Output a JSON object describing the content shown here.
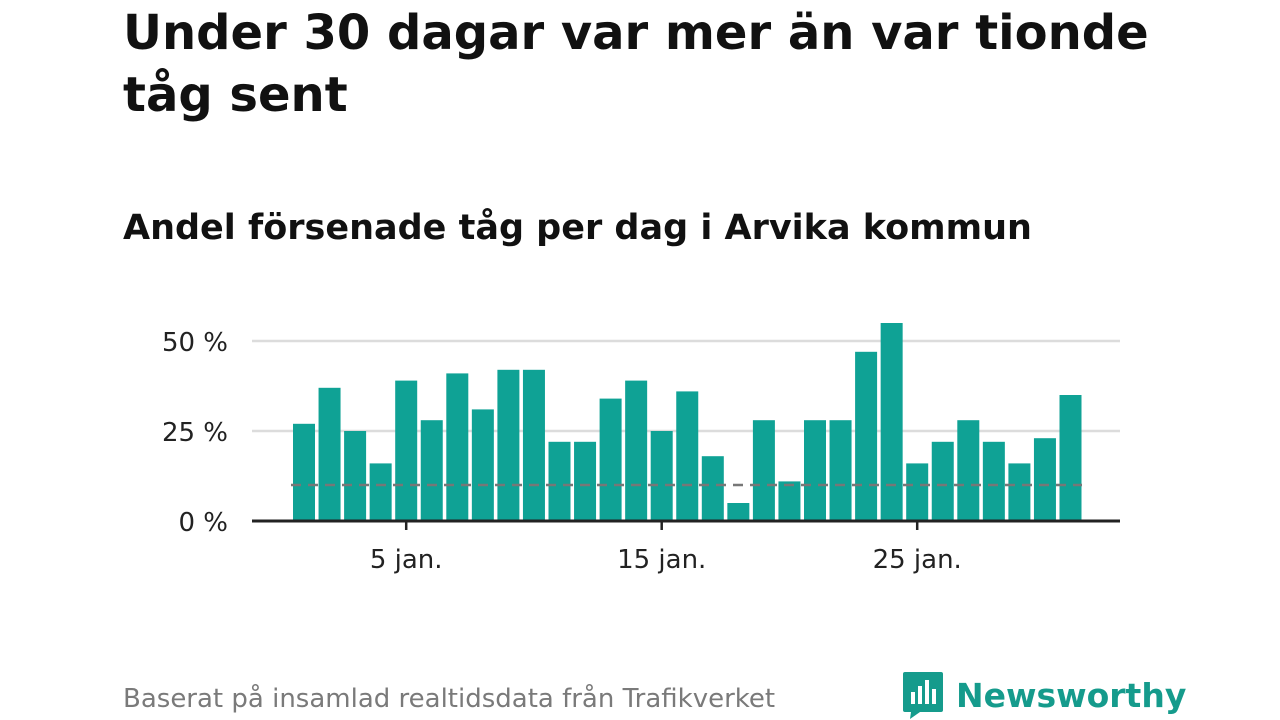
{
  "headline": "Under 30 dagar var mer än var tionde tåg sent",
  "colors": {
    "bar": "#0fa295",
    "grid": "#dcdcdc",
    "baseline": "#222222",
    "reference_line": "#777777",
    "footer_text": "#7a7a7a",
    "brand": "#159b8c"
  },
  "chart_data": {
    "type": "bar",
    "title": "Andel försenade tåg per dag i Arvika kommun",
    "xlabel": "",
    "ylabel": "",
    "x": [
      1,
      2,
      3,
      4,
      5,
      6,
      7,
      8,
      9,
      10,
      11,
      12,
      13,
      14,
      15,
      16,
      17,
      18,
      19,
      20,
      21,
      22,
      23,
      24,
      25,
      26,
      27,
      28,
      29,
      30,
      31
    ],
    "values": [
      27,
      37,
      25,
      16,
      39,
      28,
      41,
      31,
      42,
      42,
      22,
      22,
      34,
      39,
      25,
      36,
      18,
      5,
      28,
      11,
      28,
      28,
      47,
      55,
      16,
      22,
      28,
      22,
      16,
      23,
      35
    ],
    "unit": "%",
    "ylim": [
      0,
      55
    ],
    "yticks": [
      {
        "value": 0,
        "label": "0 %"
      },
      {
        "value": 25,
        "label": "25 %"
      },
      {
        "value": 50,
        "label": "50 %"
      }
    ],
    "xticks": [
      {
        "value": 5,
        "label": "5 jan."
      },
      {
        "value": 15,
        "label": "15 jan."
      },
      {
        "value": 25,
        "label": "25 jan."
      }
    ],
    "reference_line": 10,
    "grid": true,
    "legend": false
  },
  "footer": {
    "source": "Baserat på insamlad realtidsdata från Trafikverket",
    "brand_name": "Newsworthy",
    "brand_icon": "newsworthy-logo-icon"
  }
}
